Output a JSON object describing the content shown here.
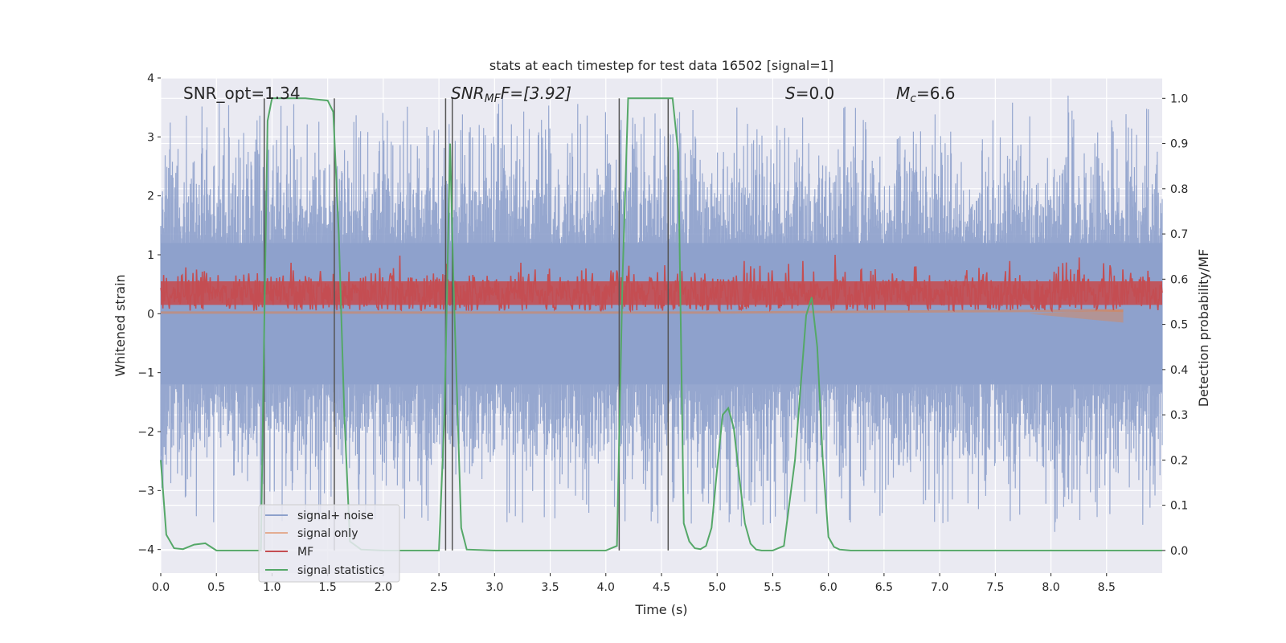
{
  "chart_data": {
    "type": "line",
    "title": "stats at each timestep for test data 16502 [signal=1]",
    "xlabel": "Time (s)",
    "ylabel": "Whitened strain",
    "ylabel_right": "Detection probability/MF",
    "xlim": [
      0,
      9.0
    ],
    "ylim": [
      -4.4,
      4.0
    ],
    "ylim_right": [
      -0.05,
      1.045
    ],
    "x_ticks": [
      "0.0",
      "0.5",
      "1.0",
      "1.5",
      "2.0",
      "2.5",
      "3.0",
      "3.5",
      "4.0",
      "4.5",
      "5.0",
      "5.5",
      "6.0",
      "6.5",
      "7.0",
      "7.5",
      "8.0",
      "8.5"
    ],
    "y_ticks": [
      "−4",
      "−3",
      "−2",
      "−1",
      "0",
      "1",
      "2",
      "3",
      "4"
    ],
    "y_ticks_right": [
      "0.0",
      "0.1",
      "0.2",
      "0.3",
      "0.4",
      "0.5",
      "0.6",
      "0.7",
      "0.8",
      "0.9",
      "1.0"
    ],
    "grid": true,
    "legend_placement": "lower-left",
    "annotations": {
      "snr_opt": "SNR_opt=1.34",
      "snr_mf_main": "SNR",
      "snr_mf_sub": "MF",
      "snr_mf_rest": "F=[3.92]",
      "s_main": "S",
      "s_rest": "=0.0",
      "mc_main": "M",
      "mc_sub": "c",
      "mc_rest": "=6.6"
    },
    "series": [
      {
        "name": "signal+ noise",
        "color": "#8da0cb",
        "axis": "left",
        "description_range": [
          -3.7,
          3.7
        ]
      },
      {
        "name": "signal only",
        "color": "#dd8452",
        "axis": "left",
        "x": [
          0,
          1,
          2,
          3,
          4,
          5,
          6,
          7,
          8,
          8.4,
          8.65
        ],
        "y": [
          0.02,
          0.02,
          0.02,
          0.02,
          0.02,
          0.02,
          0.03,
          0.04,
          0.05,
          0.06,
          0.05
        ]
      },
      {
        "name": "MF",
        "color": "#c44e52",
        "axis": "left",
        "center": 0.35
      },
      {
        "name": "signal statistics",
        "color": "#55a868",
        "axis": "right",
        "x": [
          0.0,
          0.05,
          0.12,
          0.2,
          0.3,
          0.4,
          0.45,
          0.5,
          0.6,
          0.7,
          0.8,
          0.9,
          0.93,
          0.96,
          1.0,
          1.05,
          1.1,
          1.3,
          1.5,
          1.55,
          1.6,
          1.65,
          1.7,
          1.8,
          2.0,
          2.2,
          2.4,
          2.5,
          2.55,
          2.6,
          2.63,
          2.7,
          2.75,
          3.0,
          3.5,
          4.0,
          4.1,
          4.15,
          4.2,
          4.3,
          4.5,
          4.6,
          4.65,
          4.7,
          4.75,
          4.8,
          4.85,
          4.9,
          4.95,
          5.0,
          5.05,
          5.1,
          5.15,
          5.2,
          5.25,
          5.3,
          5.35,
          5.4,
          5.5,
          5.6,
          5.7,
          5.8,
          5.85,
          5.9,
          5.95,
          6.0,
          6.05,
          6.1,
          6.2,
          6.5,
          7.0,
          8.0,
          9.0
        ],
        "y": [
          0.2,
          0.035,
          0.005,
          0.003,
          0.013,
          0.016,
          0.008,
          0.0,
          0.0,
          0.0,
          0.0,
          0.0,
          0.5,
          0.95,
          1.0,
          1.0,
          1.0,
          1.0,
          0.995,
          0.97,
          0.7,
          0.3,
          0.02,
          0.002,
          0.0,
          0.0,
          0.0,
          0.0,
          0.3,
          0.9,
          0.6,
          0.05,
          0.002,
          0.0,
          0.0,
          0.0,
          0.01,
          0.6,
          1.0,
          1.0,
          1.0,
          1.0,
          0.88,
          0.06,
          0.02,
          0.005,
          0.003,
          0.01,
          0.05,
          0.18,
          0.3,
          0.315,
          0.27,
          0.16,
          0.06,
          0.015,
          0.002,
          0.0,
          0.0,
          0.01,
          0.2,
          0.52,
          0.56,
          0.45,
          0.2,
          0.03,
          0.008,
          0.002,
          0.0,
          0.0,
          0.0,
          0.0,
          0.0
        ]
      }
    ],
    "vlines": [
      0.93,
      1.56,
      2.56,
      2.62,
      4.12,
      4.56
    ]
  }
}
